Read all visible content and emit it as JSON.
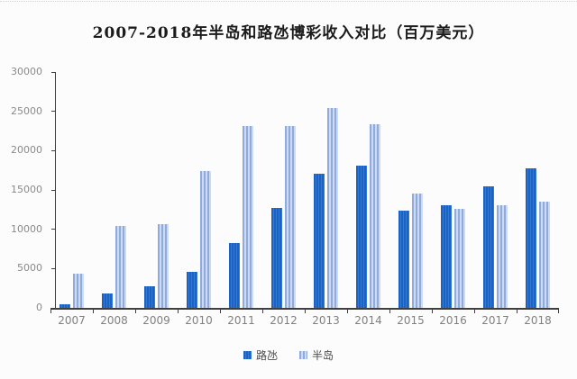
{
  "page": {
    "background": "#fcfcfc",
    "rule_color": "#d4d4d9",
    "axis_color": "#3f3f3f",
    "tick_label_color": "#8a8a8a",
    "legend_text_color": "#4a4a4a"
  },
  "chart_data": {
    "type": "bar",
    "title": "2007-2018年半岛和路氹博彩收入对比（百万美元）",
    "categories": [
      "2007",
      "2008",
      "2009",
      "2010",
      "2011",
      "2012",
      "2013",
      "2014",
      "2015",
      "2016",
      "2017",
      "2018"
    ],
    "series": [
      {
        "name": "路氹",
        "color": "#1a63c4",
        "stripe_color": "#3579d1",
        "values": [
          500,
          1800,
          2800,
          4600,
          8200,
          12700,
          17100,
          18100,
          12400,
          13000,
          15500,
          17700
        ]
      },
      {
        "name": "半岛",
        "color": "#8fabde",
        "stripe_color": "#cddaf2",
        "values": [
          4400,
          10400,
          10700,
          17400,
          23100,
          23100,
          25400,
          23400,
          14500,
          12600,
          13000,
          13500
        ]
      }
    ],
    "xlabel": "",
    "ylabel": "",
    "ylim": [
      0,
      30000
    ],
    "yticks": [
      0,
      5000,
      10000,
      15000,
      20000,
      25000,
      30000
    ],
    "grid": false,
    "legend_position": "bottom"
  }
}
